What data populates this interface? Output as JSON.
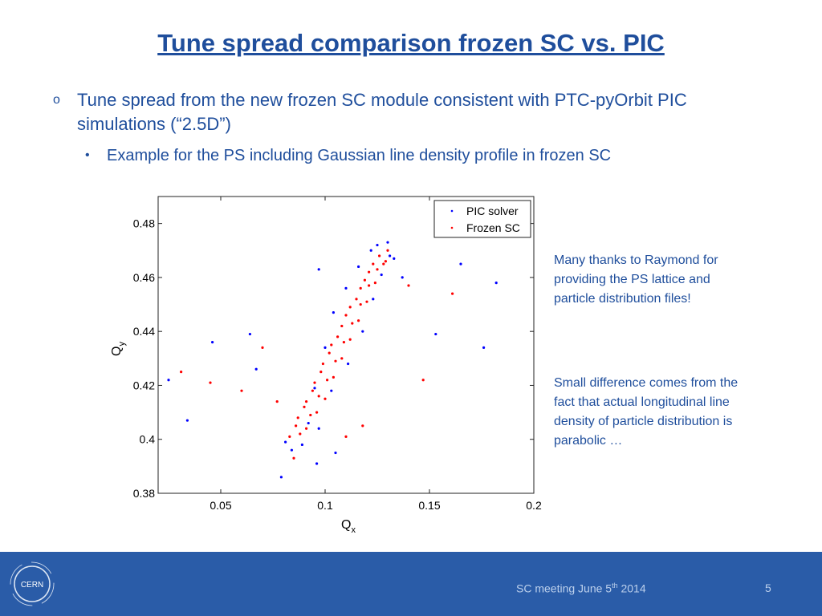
{
  "header": {
    "title": "Tune spread comparison frozen SC vs. PIC"
  },
  "bullets": [
    {
      "marker": "o",
      "text": "Tune spread from the new frozen SC module consistent with PTC-pyOrbit PIC simulations (“2.5D”)"
    },
    {
      "marker": "•",
      "text": "Example for the PS including Gaussian line density profile in frozen SC"
    }
  ],
  "notes": [
    "Many thanks to Raymond for providing the PS lattice and particle distribution files!",
    "Small difference comes from the fact that actual longitudinal line density of particle distribution is parabolic …"
  ],
  "footer": {
    "logo": "CERN",
    "text": "SC meeting June 5",
    "superscript": "th",
    "year": "2014",
    "page": "5"
  },
  "chart_data": {
    "type": "scatter",
    "x_label": "Q",
    "x_label_sub": "x",
    "y_label": "Q",
    "y_label_sub": "y",
    "xlim": [
      0.02,
      0.2
    ],
    "xticks": [
      0.05,
      0.1,
      0.15,
      0.2
    ],
    "ylim": [
      0.38,
      0.49
    ],
    "yticks": [
      0.38,
      0.4,
      0.42,
      0.44,
      0.46,
      0.48
    ],
    "legend": "upper right",
    "series": [
      {
        "name": "PIC solver",
        "color": "#0000ff",
        "x": [
          0.081,
          0.084,
          0.089,
          0.092,
          0.097,
          0.095,
          0.103,
          0.1,
          0.111,
          0.104,
          0.118,
          0.11,
          0.123,
          0.116,
          0.127,
          0.122,
          0.131,
          0.13,
          0.125,
          0.133,
          0.025,
          0.034,
          0.046,
          0.064,
          0.079,
          0.096,
          0.137,
          0.153,
          0.165,
          0.176,
          0.182,
          0.097,
          0.105,
          0.067
        ],
        "values": [
          0.399,
          0.396,
          0.398,
          0.406,
          0.404,
          0.419,
          0.418,
          0.434,
          0.428,
          0.447,
          0.44,
          0.456,
          0.452,
          0.464,
          0.461,
          0.47,
          0.468,
          0.473,
          0.472,
          0.467,
          0.422,
          0.407,
          0.436,
          0.439,
          0.386,
          0.391,
          0.46,
          0.439,
          0.465,
          0.434,
          0.458,
          0.463,
          0.395,
          0.426
        ]
      },
      {
        "name": "Frozen SC",
        "color": "#ff0000",
        "x": [
          0.083,
          0.088,
          0.086,
          0.091,
          0.087,
          0.093,
          0.09,
          0.096,
          0.091,
          0.097,
          0.094,
          0.1,
          0.095,
          0.101,
          0.098,
          0.104,
          0.099,
          0.105,
          0.102,
          0.108,
          0.103,
          0.109,
          0.106,
          0.112,
          0.108,
          0.113,
          0.11,
          0.116,
          0.112,
          0.117,
          0.115,
          0.12,
          0.117,
          0.121,
          0.119,
          0.124,
          0.121,
          0.125,
          0.123,
          0.128,
          0.126,
          0.13,
          0.129,
          0.077,
          0.07,
          0.06,
          0.045,
          0.14,
          0.161,
          0.11,
          0.118,
          0.085,
          0.147,
          0.031
        ],
        "values": [
          0.401,
          0.402,
          0.405,
          0.404,
          0.408,
          0.409,
          0.412,
          0.41,
          0.414,
          0.416,
          0.418,
          0.415,
          0.421,
          0.422,
          0.425,
          0.423,
          0.428,
          0.429,
          0.432,
          0.43,
          0.435,
          0.436,
          0.438,
          0.437,
          0.442,
          0.443,
          0.446,
          0.444,
          0.449,
          0.45,
          0.452,
          0.451,
          0.456,
          0.457,
          0.459,
          0.458,
          0.462,
          0.463,
          0.465,
          0.465,
          0.468,
          0.47,
          0.466,
          0.414,
          0.434,
          0.418,
          0.421,
          0.457,
          0.454,
          0.401,
          0.405,
          0.393,
          0.422,
          0.425
        ]
      }
    ]
  }
}
